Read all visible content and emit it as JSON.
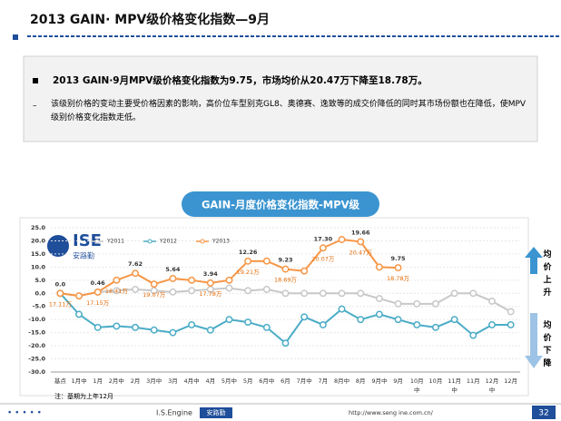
{
  "header": {
    "title": "2013 GAIN· MPV级价格变化指数—9月"
  },
  "summary": {
    "headline": "2013 GAIN·9月MPV级价格变化指数为9.75，市场均价从20.47万下降至18.78万。",
    "detail": "该级别价格的变动主要受价格因素的影响，高价位车型别克GL8、奥德赛、逸致等的成交价降低的同时其市场份额也在降低，使MPV级别价格变化指数走低。"
  },
  "logo": {
    "mark": "ISE",
    "name": "安路勤"
  },
  "side": {
    "up": "均价上升",
    "down": "均价下降"
  },
  "note": "注：基期为上年12月",
  "footer": {
    "brand": "I.S.Engine",
    "brand_cn": "安路勤",
    "url": "http://www.seng ine.com.cn/",
    "page": "32"
  },
  "chart_data": {
    "type": "line",
    "title": "GAIN-月度价格变化指数-MPV级",
    "categories": [
      "基点",
      "1月中",
      "1月",
      "2月中",
      "2月",
      "3月中",
      "3月",
      "4月中",
      "4月",
      "5月中",
      "5月",
      "6月中",
      "6月",
      "7月中",
      "7月",
      "8月中",
      "8月",
      "9月中",
      "9月",
      "10月中",
      "10月",
      "11月中",
      "11月",
      "12月中",
      "12月"
    ],
    "ylim": [
      -30,
      25
    ],
    "yticks": [
      {
        "value": 25,
        "label": "25.0"
      },
      {
        "value": 20,
        "label": "20.0"
      },
      {
        "value": 15,
        "label": "15.0"
      },
      {
        "value": 10,
        "label": "10.0"
      },
      {
        "value": 5,
        "label": "5.0"
      },
      {
        "value": 0,
        "label": "0.0"
      },
      {
        "value": -5,
        "label": "-5.0"
      },
      {
        "value": -10,
        "label": "-10.0"
      },
      {
        "value": -15,
        "label": "-15.0"
      },
      {
        "value": -20,
        "label": "-20.0"
      },
      {
        "value": -25,
        "label": "-25.0"
      },
      {
        "value": -30,
        "label": "-30.0"
      }
    ],
    "grid": true,
    "series": [
      {
        "name": "Y2011",
        "color": "#c8c8c8",
        "values": [
          0,
          -1,
          0.5,
          1,
          1.5,
          1,
          0.5,
          1,
          1.5,
          2,
          1,
          1.5,
          0,
          0,
          0,
          0,
          0,
          -2,
          -4,
          -4,
          -4,
          0,
          0,
          -3,
          -7
        ]
      },
      {
        "name": "Y2012",
        "color": "#4bacc6",
        "values": [
          0,
          -8,
          -13,
          -12.5,
          -13,
          -14,
          -15,
          -12,
          -14,
          -10,
          -11,
          -13,
          -19,
          -9,
          -12,
          -6,
          -10,
          -8,
          -10,
          -12,
          -13,
          -10,
          -16,
          -12,
          -12
        ]
      },
      {
        "name": "Y2013",
        "color": "#f79646",
        "values": [
          0,
          -1,
          0.46,
          5,
          7.62,
          3.5,
          5.64,
          5,
          3.94,
          5,
          12.26,
          12.3,
          9.23,
          8.5,
          17.3,
          20.5,
          19.66,
          10,
          9.75,
          null,
          null,
          null,
          null,
          null,
          null
        ],
        "value_labels": [
          "0.0",
          null,
          "0.46",
          null,
          "7.62",
          null,
          "5.64",
          null,
          "3.94",
          null,
          "12.26",
          null,
          "9.23",
          null,
          "17.30",
          null,
          "19.66",
          null,
          "9.75",
          null,
          null,
          null,
          null,
          null,
          null
        ]
      }
    ],
    "annotations": [
      {
        "text": "17.11万",
        "index": 0
      },
      {
        "text": "17.15万",
        "index": 2
      },
      {
        "text": "18.41万",
        "index": 3
      },
      {
        "text": "19.07万",
        "index": 5
      },
      {
        "text": "17.78万",
        "index": 8
      },
      {
        "text": "19.21万",
        "index": 10
      },
      {
        "text": "18.69万",
        "index": 12
      },
      {
        "text": "20.07万",
        "index": 14
      },
      {
        "text": "20.47万",
        "index": 16
      },
      {
        "text": "18.78万",
        "index": 18
      }
    ]
  }
}
